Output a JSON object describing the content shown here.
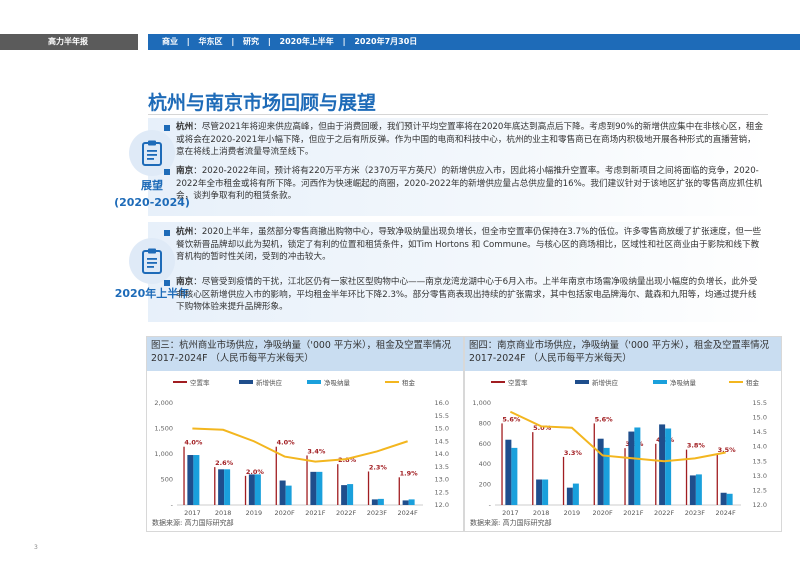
{
  "header": {
    "brand": "高力半年报",
    "meta": [
      "商业",
      "华东区",
      "研究",
      "2020年上半年",
      "2020年7月30日"
    ],
    "separator": "|"
  },
  "title": "杭州与南京市场回顾与展望",
  "sections": [
    {
      "badge_label_1": "展望",
      "badge_label_2": "(2020-2024)",
      "icon": "clipboard-icon",
      "paragraphs": [
        {
          "key": "杭州",
          "sep": "：",
          "text": "尽管2021年将迎来供应高峰，但由于消费回暖，我们预计平均空置率将在2020年底达到高点后下降。考虑到90%的新增供应集中在非核心区，租金或将会在2020-2021年小幅下降，但应于之后有所反弹。作为中国的电商和科技中心，杭州的业主和零售商已在商场内积极地开展各种形式的直播营销，意在将线上消费者流量导流至线下。"
        },
        {
          "key": "南京",
          "sep": "：",
          "text": "2020-2022年间，预计将有220万平方米（2370万平方英尺）的新增供应入市，因此将小幅推升空置率。考虑到新项目之间将面临的竞争，2020-2022年全市租金或将有所下降。河西作为快速崛起的商圈，2020-2022年的新增供应量占总供应量的16%。我们建议针对于该地区扩张的零售商应抓住机会，谈判争取有利的租赁条款。"
        }
      ]
    },
    {
      "badge_label_1": "2020年上半年",
      "icon": "clipboard-icon",
      "paragraphs": [
        {
          "key": "杭州",
          "sep": "：",
          "text": "2020上半年，虽然部分零售商撤出购物中心，导致净吸纳量出现负增长，但全市空置率仍保持在3.7%的低位。许多零售商放缓了扩张速度，但一些餐饮新晋品牌却以此为契机，锁定了有利的位置和租赁条件，如Tim Hortons 和 Commune。与核心区的商场相比，区域性和社区商业由于影院和线下教育机构的暂时性关闭，受到的冲击较大。"
        },
        {
          "key": "南京",
          "sep": "：",
          "text": "尽管受到疫情的干扰，江北区仍有一家社区型购物中心——南京龙湾龙湖中心于6月入市。上半年南京市场需净吸纳量出现小幅度的负增长，此外受非核心区新增供应入市的影响，平均租金半年环比下降2.3%。部分零售商表现出持续的扩张需求，其中包括家电品牌海尔、戴森和九阳等，均通过提升线下购物体验来提升品牌形象。"
        }
      ]
    }
  ],
  "colors": {
    "vacancy": "#a11d21",
    "supply": "#1f4e8c",
    "absorption": "#1aa0dc",
    "rent": "#f3b61f"
  },
  "legend": [
    "空置率",
    "新增供应",
    "净吸纳量",
    "租金"
  ],
  "chart_data": [
    {
      "type": "bar",
      "title": "图三：杭州商业市场供应，净吸纳量（'000 平方米），租金及空置率情况 2017-2024F （人民币每平方米每天）",
      "categories": [
        "2017",
        "2018",
        "2019",
        "2020F",
        "2021F",
        "2022F",
        "2023F",
        "2024F"
      ],
      "series": [
        {
          "name": "空置率",
          "values": [
            4.0,
            2.6,
            2.0,
            4.0,
            3.4,
            2.8,
            2.3,
            1.9
          ],
          "labels": [
            "4.0%",
            "2.6%",
            "2.0%",
            "4.0%",
            "3.4%",
            "2.8%",
            "2.3%",
            "1.9%"
          ]
        },
        {
          "name": "新增供应",
          "values": [
            980,
            700,
            600,
            480,
            650,
            390,
            110,
            90
          ]
        },
        {
          "name": "净吸纳量",
          "values": [
            980,
            700,
            600,
            380,
            650,
            410,
            120,
            110
          ]
        },
        {
          "name": "租金",
          "values": [
            15.0,
            14.95,
            14.5,
            13.9,
            13.7,
            13.8,
            14.1,
            14.5
          ]
        }
      ],
      "y_left": {
        "range": [
          0,
          2000
        ],
        "ticks": [
          "-",
          "500",
          "1,000",
          "1,500",
          "2,000"
        ]
      },
      "y_right": {
        "range": [
          12.0,
          16.0
        ],
        "ticks": [
          "12.0",
          "12.5",
          "13.0",
          "13.5",
          "14.0",
          "14.5",
          "15.0",
          "15.5",
          "16.0"
        ]
      },
      "source": "数据来源: 高力国际研究部"
    },
    {
      "type": "bar",
      "title": "图四：南京商业市场供应，净吸纳量（'000 平方米），租金及空置率情况 2017-2024F （人民币每平方米每天）",
      "categories": [
        "2017",
        "2018",
        "2019",
        "2020F",
        "2021F",
        "2022F",
        "2023F",
        "2024F"
      ],
      "series": [
        {
          "name": "空置率",
          "values": [
            5.6,
            5.0,
            3.3,
            5.6,
            3.9,
            4.2,
            3.8,
            3.5
          ],
          "labels": [
            "5.6%",
            "5.0%",
            "3.3%",
            "5.6%",
            "3.9%",
            "4.2%",
            "3.8%",
            "3.5%"
          ]
        },
        {
          "name": "新增供应",
          "values": [
            640,
            250,
            170,
            650,
            720,
            790,
            290,
            120
          ]
        },
        {
          "name": "净吸纳量",
          "values": [
            560,
            250,
            210,
            560,
            760,
            750,
            300,
            110
          ]
        },
        {
          "name": "租金",
          "values": [
            15.2,
            14.7,
            14.65,
            13.7,
            13.6,
            13.5,
            13.6,
            13.8
          ]
        }
      ],
      "y_left": {
        "range": [
          0,
          1000
        ],
        "ticks": [
          "-",
          "200",
          "400",
          "600",
          "800",
          "1,000"
        ]
      },
      "y_right": {
        "range": [
          12.0,
          15.5
        ],
        "ticks": [
          "12.0",
          "12.5",
          "13.0",
          "13.5",
          "14.0",
          "14.5",
          "15.0",
          "15.5"
        ]
      },
      "source": "数据来源: 高力国际研究部"
    }
  ],
  "page_number": "3"
}
